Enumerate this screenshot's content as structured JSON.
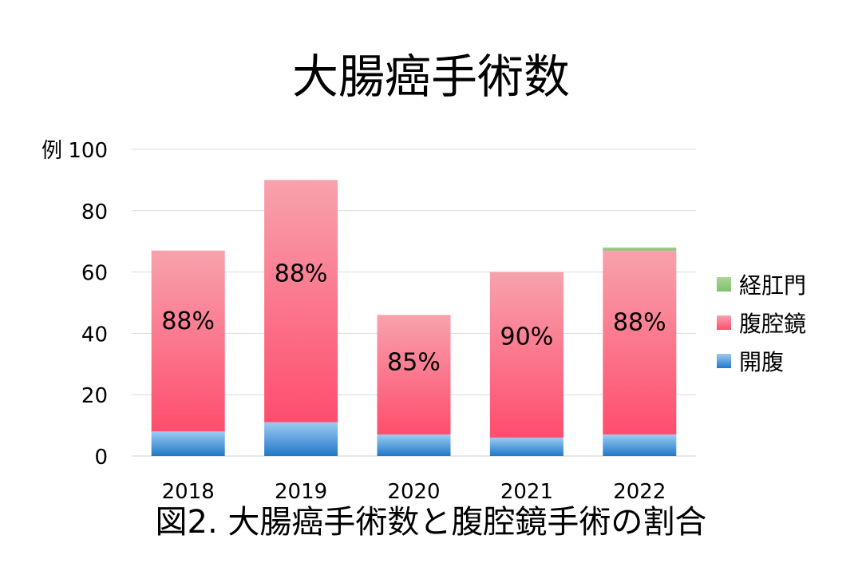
{
  "chart_data": {
    "type": "bar",
    "stacked": true,
    "title": "大腸癌手術数",
    "caption": "図2. 大腸癌手術数と腹腔鏡手術の割合",
    "ylabel": "例",
    "xlabel": "",
    "ylim": [
      0,
      100
    ],
    "yticks": [
      0,
      20,
      40,
      60,
      80,
      100
    ],
    "grid": true,
    "legend_position": "right",
    "categories": [
      "2018",
      "2019",
      "2020",
      "2021",
      "2022"
    ],
    "series": [
      {
        "name": "開腹",
        "values": [
          8,
          11,
          7,
          6,
          7
        ],
        "color": "#2e86d4"
      },
      {
        "name": "腹腔鏡",
        "values": [
          59,
          79,
          39,
          54,
          60
        ],
        "color": "#ff5a78"
      },
      {
        "name": "経肛門",
        "values": [
          0,
          0,
          0,
          0,
          1
        ],
        "color": "#8fc97a"
      }
    ],
    "annotations": [
      "88%",
      "88%",
      "85%",
      "90%",
      "88%"
    ]
  }
}
